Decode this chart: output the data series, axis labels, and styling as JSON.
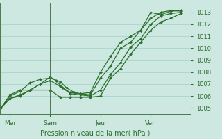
{
  "xlabel": "Pression niveau de la mer( hPa )",
  "bg_color": "#cce8e0",
  "grid_color": "#aad4cc",
  "line_color": "#2d6e2d",
  "spine_color": "#4a7a4a",
  "ylim": [
    1004.5,
    1013.8
  ],
  "xlim": [
    0.0,
    9.5
  ],
  "yticks": [
    1005,
    1006,
    1007,
    1008,
    1009,
    1010,
    1011,
    1012,
    1013
  ],
  "xtick_positions": [
    0.5,
    2.5,
    5.0,
    7.5
  ],
  "xtick_labels": [
    "Mer",
    "Sam",
    "Jeu",
    "Ven"
  ],
  "vline_positions": [
    0.5,
    2.5,
    5.0,
    7.5
  ],
  "line1_x": [
    0.05,
    0.5,
    1.0,
    2.5,
    3.0,
    3.5,
    4.0,
    4.5,
    5.0,
    5.5,
    6.0,
    6.5,
    7.0,
    7.5,
    8.0,
    8.5,
    9.0
  ],
  "line1_y": [
    1005.0,
    1006.1,
    1006.5,
    1006.5,
    1005.9,
    1005.9,
    1005.9,
    1005.9,
    1006.0,
    1007.5,
    1008.3,
    1009.5,
    1010.5,
    1011.5,
    1012.2,
    1012.5,
    1012.9
  ],
  "line2_x": [
    0.05,
    0.5,
    1.0,
    1.5,
    2.0,
    2.5,
    3.0,
    3.5,
    4.0,
    4.5,
    5.0,
    5.5,
    6.0,
    6.5,
    7.0,
    7.5,
    8.0,
    8.5,
    9.0
  ],
  "line2_y": [
    1005.0,
    1005.8,
    1006.0,
    1006.5,
    1007.0,
    1007.3,
    1006.8,
    1006.2,
    1006.1,
    1006.0,
    1006.5,
    1007.8,
    1008.8,
    1010.1,
    1010.8,
    1012.0,
    1012.7,
    1012.9,
    1013.0
  ],
  "line3_x": [
    0.05,
    0.5,
    1.0,
    1.5,
    2.0,
    2.5,
    3.0,
    3.3,
    3.7,
    4.0,
    4.5,
    5.0,
    5.5,
    6.0,
    6.5,
    7.0,
    7.5,
    8.0,
    8.5,
    9.0
  ],
  "line3_y": [
    1005.0,
    1006.0,
    1006.4,
    1007.1,
    1007.4,
    1007.5,
    1007.2,
    1006.7,
    1006.3,
    1006.2,
    1006.1,
    1007.5,
    1008.5,
    1010.0,
    1010.5,
    1011.5,
    1013.0,
    1012.8,
    1013.1,
    1013.15
  ],
  "line4_x": [
    0.05,
    0.5,
    1.0,
    1.5,
    2.0,
    2.5,
    2.8,
    3.1,
    3.5,
    4.0,
    4.5,
    5.0,
    5.5,
    6.0,
    6.5,
    7.0,
    7.5,
    8.0,
    8.5,
    9.0
  ],
  "line4_y": [
    1005.0,
    1005.8,
    1006.1,
    1006.5,
    1007.0,
    1007.6,
    1007.3,
    1006.7,
    1006.3,
    1006.2,
    1006.3,
    1008.0,
    1009.3,
    1010.5,
    1011.0,
    1011.5,
    1012.5,
    1013.0,
    1013.15,
    1013.1
  ],
  "marker_size": 2.0,
  "linewidth": 0.9
}
